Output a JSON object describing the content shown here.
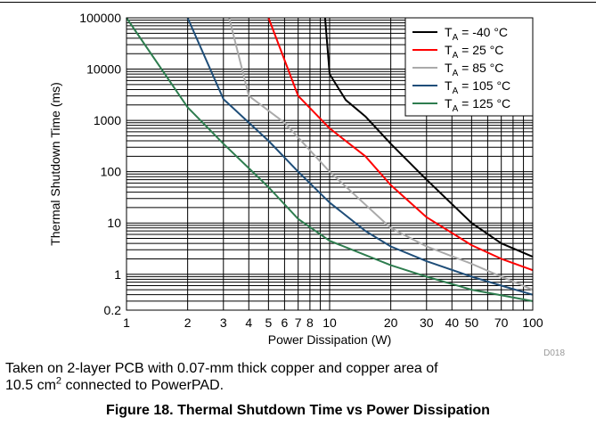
{
  "chart_data": {
    "type": "line",
    "xscale": "log",
    "yscale": "log",
    "xlim": [
      1,
      100
    ],
    "ylim": [
      0.2,
      100000
    ],
    "xlabel": "Power Dissipation (W)",
    "ylabel": "Thermal Shutdown Time (ms)",
    "x_ticks": [
      1,
      2,
      3,
      4,
      5,
      6,
      7,
      8,
      10,
      20,
      30,
      40,
      50,
      70,
      100
    ],
    "x_tick_labels": [
      "1",
      "2",
      "3",
      "4",
      "5",
      "6",
      "7",
      "8",
      "10",
      "20",
      "30",
      "40",
      "50",
      "70",
      "100"
    ],
    "y_ticks": [
      0.2,
      1,
      10,
      100,
      1000,
      10000,
      100000
    ],
    "y_tick_labels": [
      "0.2",
      "1",
      "10",
      "100",
      "1000",
      "10000",
      "100000"
    ],
    "grid": true,
    "legend_position": "top-right",
    "series": [
      {
        "name_main": "T",
        "name_sub": "A",
        "name_rest": " = -40 °C",
        "color": "#000000",
        "points": [
          [
            9.5,
            100000
          ],
          [
            10,
            8000
          ],
          [
            12,
            2500
          ],
          [
            15,
            1200
          ],
          [
            20,
            350
          ],
          [
            30,
            70
          ],
          [
            50,
            10
          ],
          [
            70,
            4
          ],
          [
            100,
            2.2
          ]
        ]
      },
      {
        "name_main": "T",
        "name_sub": "A",
        "name_rest": " = 25 °C",
        "color": "#ff0000",
        "points": [
          [
            5,
            100000
          ],
          [
            7,
            3000
          ],
          [
            10,
            700
          ],
          [
            15,
            200
          ],
          [
            20,
            55
          ],
          [
            30,
            13
          ],
          [
            50,
            3.7
          ],
          [
            70,
            2
          ],
          [
            100,
            1.2
          ]
        ]
      },
      {
        "name_main": "T",
        "name_sub": "A",
        "name_rest": " = 85 °C",
        "color": "#aaaaaa",
        "points": [
          [
            3.2,
            100000
          ],
          [
            4,
            3000
          ],
          [
            6,
            900
          ],
          [
            10,
            100
          ],
          [
            20,
            8
          ],
          [
            30,
            3.5
          ],
          [
            50,
            1.6
          ],
          [
            70,
            0.9
          ],
          [
            100,
            0.5
          ]
        ]
      },
      {
        "name_main": "T",
        "name_sub": "A",
        "name_rest": " = 105 °C",
        "color": "#1f4e79",
        "points": [
          [
            2,
            100000
          ],
          [
            3,
            2600
          ],
          [
            5,
            400
          ],
          [
            7,
            100
          ],
          [
            10,
            25
          ],
          [
            15,
            7
          ],
          [
            20,
            3.5
          ],
          [
            30,
            1.8
          ],
          [
            50,
            0.9
          ],
          [
            70,
            0.6
          ],
          [
            100,
            0.4
          ]
        ]
      },
      {
        "name_main": "T",
        "name_sub": "A",
        "name_rest": " = 125 °C",
        "color": "#2e7d4f",
        "points": [
          [
            1,
            100000
          ],
          [
            2,
            1800
          ],
          [
            3,
            350
          ],
          [
            5,
            50
          ],
          [
            7,
            12
          ],
          [
            10,
            4.5
          ],
          [
            20,
            1.5
          ],
          [
            30,
            0.9
          ],
          [
            50,
            0.5
          ],
          [
            100,
            0.3
          ]
        ]
      }
    ],
    "annotations": [
      "D018"
    ]
  },
  "figure": {
    "note_line1": "Taken on 2-layer PCB with 0.07-mm thick copper and copper area of",
    "note_line2_prefix": "10.5 cm",
    "note_line2_sup": "2",
    "note_line2_suffix": " connected to PowerPAD.",
    "caption": "Figure 18. Thermal Shutdown Time vs Power Dissipation"
  }
}
